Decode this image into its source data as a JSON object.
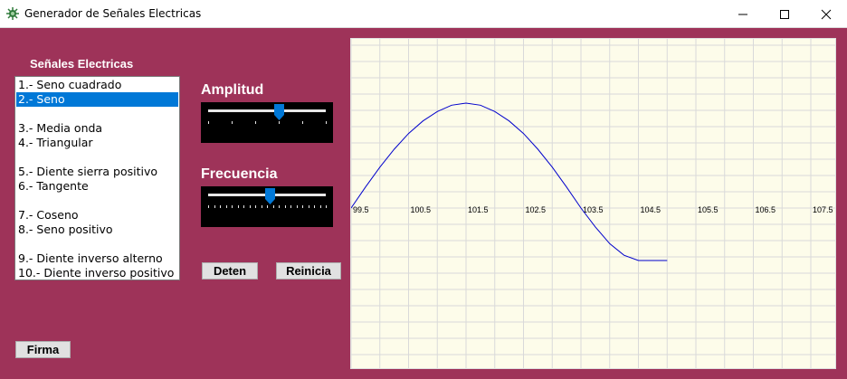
{
  "window": {
    "title": "Generador de Señales Electricas",
    "controls": [
      "minimize-icon",
      "maximize-icon",
      "close-icon"
    ]
  },
  "signal_list": {
    "title": "Señales Electricas",
    "selected_index": 1,
    "items": [
      "1.- Seno cuadrado",
      "2.- Seno",
      "",
      "3.- Media onda",
      "4.- Triangular",
      "",
      "5.- Diente sierra positivo",
      "6.- Tangente",
      "",
      "7.- Coseno",
      "8.- Seno positivo",
      "",
      "9.- Diente inverso alterno",
      "10.- Diente inverso positivo"
    ]
  },
  "amplitude": {
    "label": "Amplitud",
    "level": 0.6
  },
  "frequency": {
    "label": "Frecuencia",
    "level": 0.53
  },
  "buttons": {
    "stop": "Deten",
    "restart": "Reinicia",
    "sign": "Firma"
  },
  "colors": {
    "client_bg": "#9e3359",
    "plot_bg": "#fdfcea",
    "grid": "#d9d9d9",
    "trace": "#0000cc",
    "selection": "#0078d7"
  },
  "chart_data": {
    "type": "line",
    "x_tick_labels": [
      "99.5",
      "100.5",
      "101.5",
      "102.5",
      "103.5",
      "104.5",
      "105.5",
      "106.5",
      "107.5"
    ],
    "xlim": [
      99.5,
      107.5
    ],
    "ylim": [
      -1,
      1
    ],
    "grid": true,
    "series": [
      {
        "x": [
          99.5,
          99.75,
          100.0,
          100.25,
          100.5,
          100.75,
          101.0,
          101.25,
          101.5,
          101.75,
          102.0,
          102.25,
          102.5,
          102.75,
          103.0,
          103.25,
          103.5,
          103.75,
          104.0,
          104.25,
          104.5,
          104.75,
          105.0
        ],
        "y": [
          0.0,
          0.2,
          0.39,
          0.56,
          0.71,
          0.83,
          0.92,
          0.98,
          1.0,
          0.98,
          0.92,
          0.83,
          0.71,
          0.56,
          0.39,
          0.2,
          0.0,
          -0.18,
          -0.34,
          -0.45,
          -0.5,
          -0.5,
          -0.5
        ]
      }
    ]
  }
}
